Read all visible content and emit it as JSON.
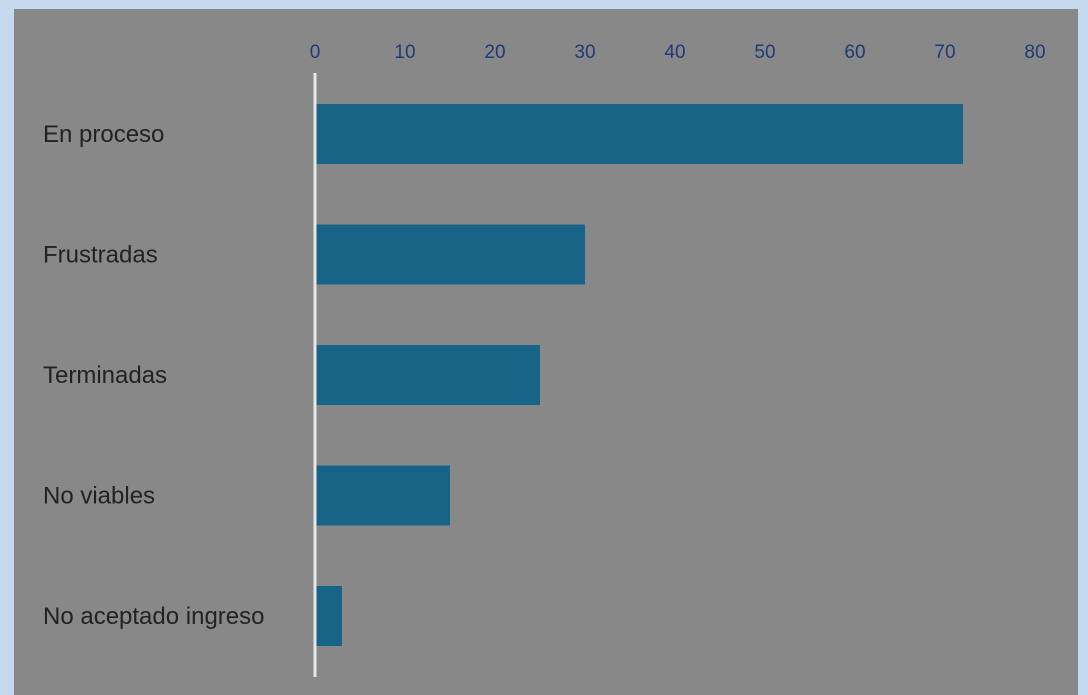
{
  "chart_data": {
    "type": "bar",
    "orientation": "horizontal",
    "categories": [
      "En proceso",
      "Frustradas",
      "Terminadas",
      "No viables",
      "No aceptado ingreso"
    ],
    "values": [
      72,
      30,
      25,
      15,
      3
    ],
    "xlim": [
      0,
      80
    ],
    "x_ticks": [
      "0",
      "10",
      "20",
      "30",
      "40",
      "50",
      "60",
      "70",
      "80"
    ],
    "x_axis_position": "top",
    "grid": false,
    "legend": "none",
    "colors": {
      "bar": "#176487",
      "plot_background": "#888888",
      "page_background": "#c5d9ee",
      "tick_text": "#1f3a7a",
      "category_text": "#222222",
      "axis_line": "#e8e8e8"
    }
  }
}
